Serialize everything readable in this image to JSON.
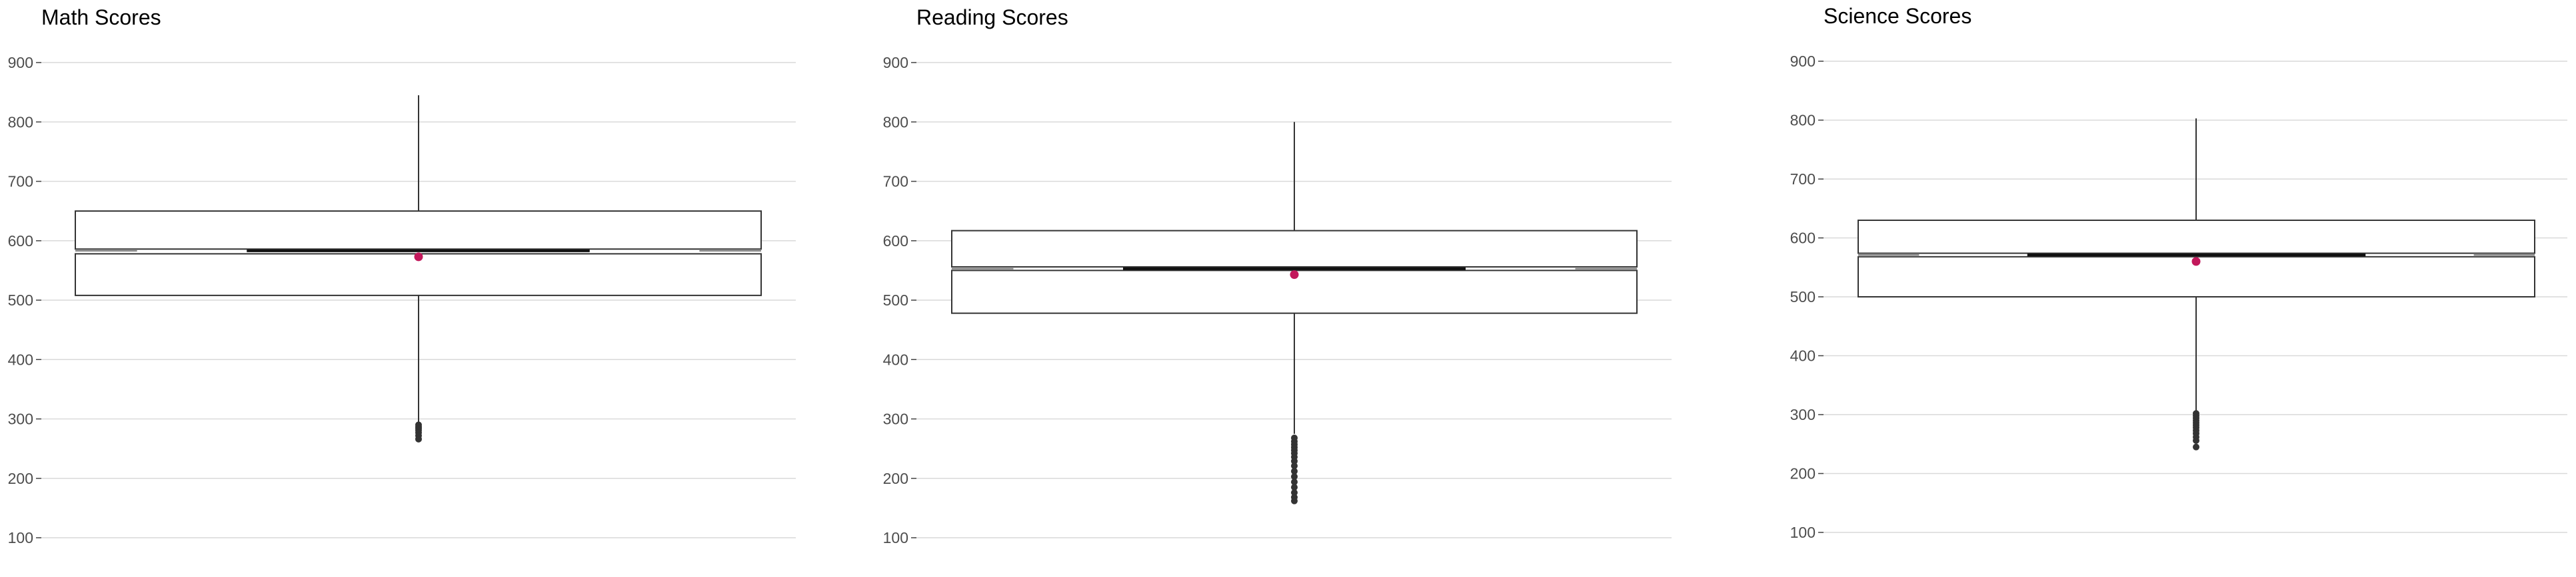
{
  "chart_data": [
    {
      "type": "boxplot",
      "title": "Math Scores",
      "xlabel": "",
      "ylabel": "",
      "ylim": [
        80,
        920
      ],
      "yticks": [
        100,
        200,
        300,
        400,
        500,
        600,
        700,
        800,
        900
      ],
      "grid": "horizontal",
      "box": {
        "whisker_low": 295,
        "q1": 508,
        "notch_low": 578,
        "median": 583,
        "notch_high": 586,
        "q3": 650,
        "whisker_high": 845,
        "mean": 573
      },
      "outliers": [
        290,
        287,
        284,
        281,
        277,
        272,
        266
      ],
      "colors": {
        "mean": "#c2185b",
        "box": "#333333",
        "grid": "#d9d9d9"
      }
    },
    {
      "type": "boxplot",
      "title": "Reading Scores",
      "xlabel": "",
      "ylabel": "",
      "ylim": [
        80,
        920
      ],
      "yticks": [
        100,
        200,
        300,
        400,
        500,
        600,
        700,
        800,
        900
      ],
      "grid": "horizontal",
      "box": {
        "whisker_low": 275,
        "q1": 478,
        "notch_low": 550,
        "median": 553,
        "notch_high": 556,
        "q3": 617,
        "whisker_high": 800,
        "mean": 543
      },
      "outliers": [
        268,
        262,
        257,
        252,
        247,
        242,
        236,
        229,
        221,
        212,
        203,
        194,
        185,
        176,
        168,
        162
      ],
      "colors": {
        "mean": "#c2185b",
        "box": "#333333",
        "grid": "#d9d9d9"
      }
    },
    {
      "type": "boxplot",
      "title": "Science Scores",
      "xlabel": "",
      "ylabel": "",
      "ylim": [
        80,
        920
      ],
      "yticks": [
        100,
        200,
        300,
        400,
        500,
        600,
        700,
        800,
        900
      ],
      "grid": "horizontal",
      "box": {
        "whisker_low": 305,
        "q1": 500,
        "notch_low": 568,
        "median": 571,
        "notch_high": 574,
        "q3": 630,
        "whisker_high": 803,
        "mean": 560
      },
      "outliers": [
        302,
        298,
        294,
        290,
        286,
        282,
        278,
        273,
        268,
        262,
        256,
        245
      ],
      "colors": {
        "mean": "#c2185b",
        "box": "#333333",
        "grid": "#d9d9d9"
      }
    }
  ]
}
